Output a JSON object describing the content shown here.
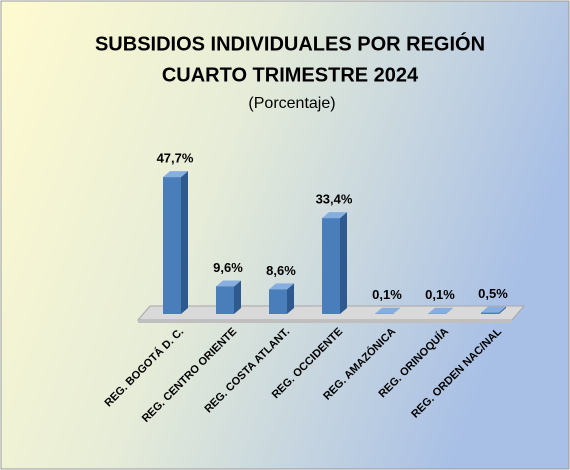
{
  "chart_data": {
    "type": "bar3d",
    "title": "SUBSIDIOS INDIVIDUALES  POR REGIÓN",
    "title2": "CUARTO TRIMESTRE  2024",
    "subtitle": "(Porcentaje)",
    "categories": [
      "REG. BOGOTÁ D. C.",
      "REG. CENTRO ORIENTE",
      "REG. COSTA ATLANT.",
      "REG. OCCIDENTE",
      "REG. AMAZÓNICA",
      "REG. ORINOQUÍA",
      "REG. ORDEN NAC/NAL"
    ],
    "values": [
      47.7,
      9.6,
      8.6,
      33.4,
      0.1,
      0.1,
      0.5
    ],
    "value_labels": [
      "47,7%",
      "9,6%",
      "8,6%",
      "33,4%",
      "0,1%",
      "0,1%",
      "0,5%"
    ],
    "color": "#4a7ebb"
  }
}
